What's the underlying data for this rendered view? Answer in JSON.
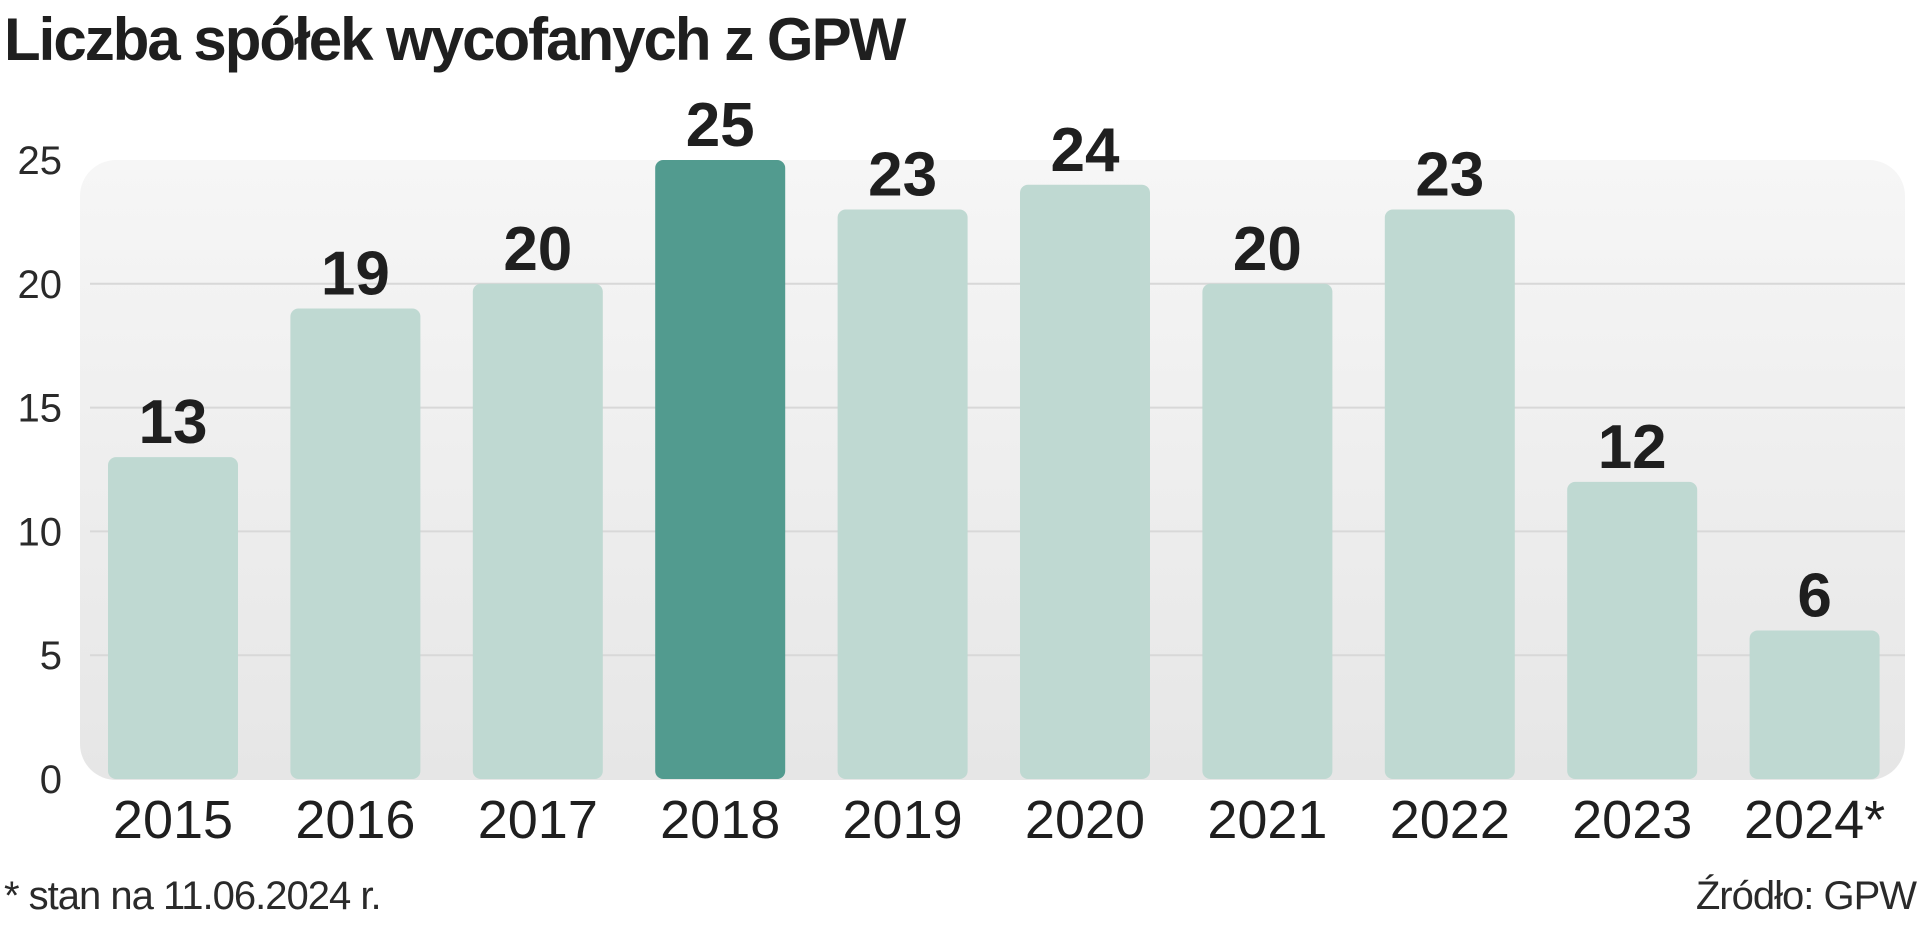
{
  "chart_data": {
    "type": "bar",
    "title": "Liczba spółek wycofanych z GPW",
    "categories": [
      "2015",
      "2016",
      "2017",
      "2018",
      "2019",
      "2020",
      "2021",
      "2022",
      "2023",
      "2024*"
    ],
    "values": [
      13,
      19,
      20,
      25,
      23,
      24,
      20,
      23,
      12,
      6
    ],
    "data_labels": [
      "13",
      "19",
      "20",
      "25",
      "23",
      "24",
      "20",
      "23",
      "12",
      "6"
    ],
    "highlight_category": "2018",
    "xlabel": "",
    "ylabel": "",
    "ylim": [
      0,
      25
    ],
    "yticks": [
      0,
      5,
      10,
      15,
      20,
      25
    ],
    "ytick_labels": [
      "0",
      "5",
      "10",
      "15",
      "20",
      "25"
    ],
    "grid": true,
    "legend": "none",
    "footnote": "* stan na 11.06.2024 r.",
    "source": "Źródło: GPW"
  },
  "colors": {
    "bar": "#bfd9d2",
    "bar_highlight": "#529b8f",
    "plot_background": "#ebebeb",
    "grid": "#d8d8d8",
    "text": "#1f1f1f"
  }
}
